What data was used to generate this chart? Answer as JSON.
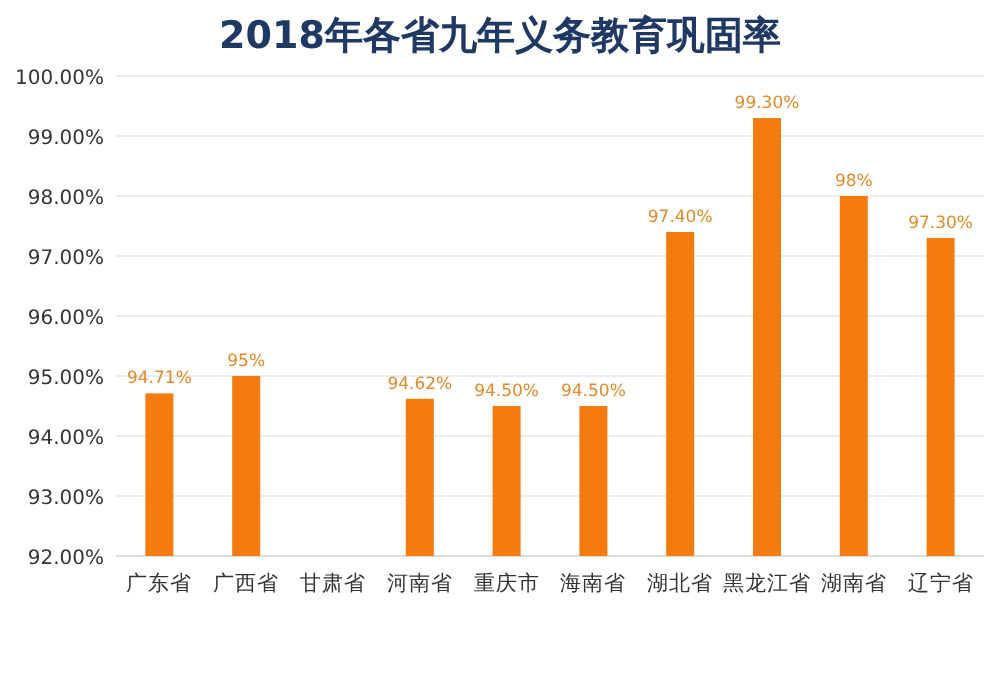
{
  "chart_data": {
    "type": "bar",
    "title": "2018年各省九年义务教育巩固率",
    "categories": [
      "广东省",
      "广西省",
      "甘肃省",
      "河南省",
      "重庆市",
      "海南省",
      "湖北省",
      "黑龙江省",
      "湖南省",
      "辽宁省"
    ],
    "values": [
      94.71,
      95,
      null,
      94.62,
      94.5,
      94.5,
      97.4,
      99.3,
      98,
      97.3
    ],
    "value_labels": [
      "94.71%",
      "95%",
      null,
      "94.62%",
      "94.50%",
      "94.50%",
      "97.40%",
      "99.30%",
      "98%",
      "97.30%"
    ],
    "color": "#f47b0e",
    "ylim": [
      92,
      100
    ],
    "yticks": [
      {
        "value": 92,
        "label": "92.00%"
      },
      {
        "value": 93,
        "label": "93.00%"
      },
      {
        "value": 94,
        "label": "94.00%"
      },
      {
        "value": 95,
        "label": "95.00%"
      },
      {
        "value": 96,
        "label": "96.00%"
      },
      {
        "value": 97,
        "label": "97.00%"
      },
      {
        "value": 98,
        "label": "98.00%"
      },
      {
        "value": 99,
        "label": "99.00%"
      },
      {
        "value": 100,
        "label": "100.00%"
      }
    ],
    "grid": "y"
  }
}
